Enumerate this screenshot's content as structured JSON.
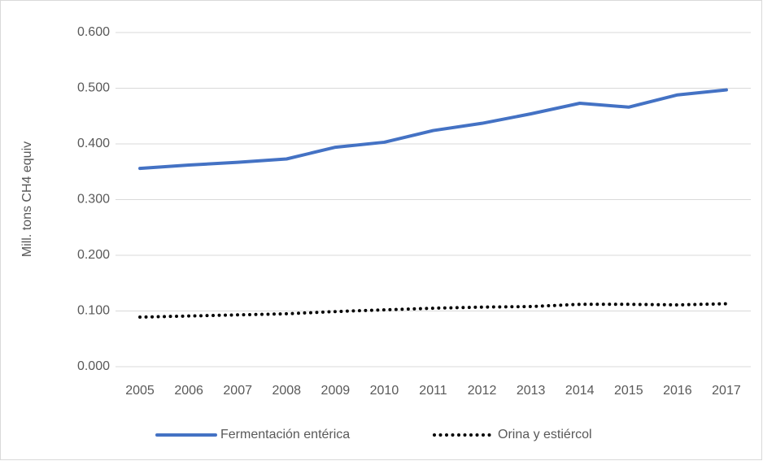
{
  "chart_data": {
    "type": "line",
    "y_label": "Mill. tons CH4 equiv",
    "categories": [
      "2005",
      "2006",
      "2007",
      "2008",
      "2009",
      "2010",
      "2011",
      "2012",
      "2013",
      "2014",
      "2015",
      "2016",
      "2017"
    ],
    "series": [
      {
        "name": "Fermentación entérica",
        "color": "#4472c4",
        "style": "solid",
        "values": [
          0.356,
          0.362,
          0.367,
          0.373,
          0.394,
          0.403,
          0.424,
          0.437,
          0.454,
          0.473,
          0.466,
          0.488,
          0.497
        ]
      },
      {
        "name": "Orina y estiércol",
        "color": "#000000",
        "style": "dotted",
        "values": [
          0.089,
          0.091,
          0.093,
          0.095,
          0.099,
          0.102,
          0.105,
          0.107,
          0.108,
          0.112,
          0.112,
          0.111,
          0.113
        ]
      }
    ],
    "ylim": [
      0,
      0.6
    ],
    "yticks": [
      {
        "value": 0,
        "label": "0.000"
      },
      {
        "value": 0.1,
        "label": "0.100"
      },
      {
        "value": 0.2,
        "label": "0.200"
      },
      {
        "value": 0.3,
        "label": "0.300"
      },
      {
        "value": 0.4,
        "label": "0.400"
      },
      {
        "value": 0.5,
        "label": "0.500"
      },
      {
        "value": 0.6,
        "label": "0.600"
      }
    ],
    "grid": true,
    "legend": "bottom"
  }
}
